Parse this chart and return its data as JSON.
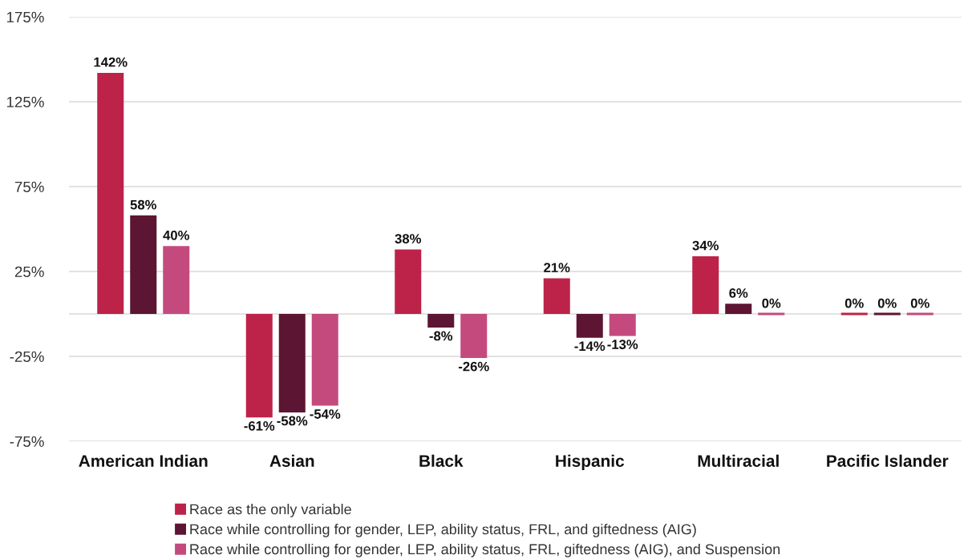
{
  "chart_data": {
    "type": "bar",
    "categories": [
      "American Indian",
      "Asian",
      "Black",
      "Hispanic",
      "Multiracial",
      "Pacific Islander"
    ],
    "series": [
      {
        "name": "Race as the only variable",
        "color": "#bd2349",
        "values": [
          142,
          -61,
          38,
          21,
          34,
          0
        ],
        "value_labels": [
          "142%",
          "-61%",
          "38%",
          "21%",
          "34%",
          "0%"
        ]
      },
      {
        "name": "Race while controlling for gender, LEP, ability status, FRL, and giftedness (AIG)",
        "color": "#5c1532",
        "values": [
          58,
          -58,
          -8,
          -14,
          6,
          0
        ],
        "value_labels": [
          "58%",
          "-58%",
          "-8%",
          "-14%",
          "6%",
          "0%"
        ]
      },
      {
        "name": "Race while controlling for gender, LEP, ability status, FRL, giftedness (AIG), and Suspension",
        "color": "#c44a7e",
        "values": [
          40,
          -54,
          -26,
          -13,
          0,
          0
        ],
        "value_labels": [
          "40%",
          "-54%",
          "-26%",
          "-13%",
          "0%",
          "0%"
        ]
      }
    ],
    "ylim": [
      -75,
      175
    ],
    "yticks": [
      {
        "value": -75,
        "label": "-75%"
      },
      {
        "value": -25,
        "label": "-25%"
      },
      {
        "value": 25,
        "label": "25%"
      },
      {
        "value": 75,
        "label": "75%"
      },
      {
        "value": 125,
        "label": "125%"
      },
      {
        "value": 175,
        "label": "175%"
      }
    ],
    "grid": "y",
    "ref_lines": [
      {
        "axis": "y",
        "value": 0,
        "color": "#d9d9d9"
      }
    ],
    "legend": "bottom"
  }
}
